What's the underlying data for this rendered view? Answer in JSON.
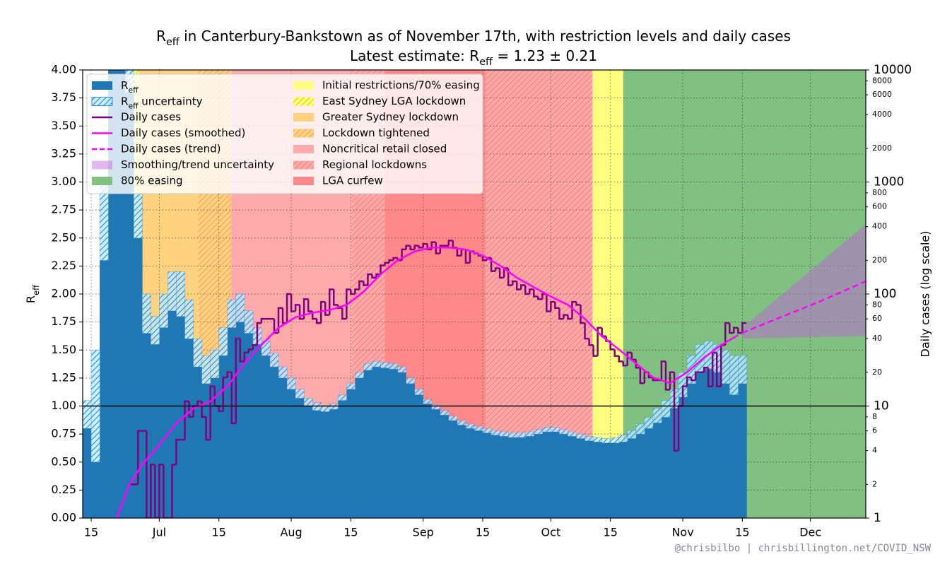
{
  "chart_data": {
    "type": "step",
    "title": [
      "R",
      {
        "sub": "eff"
      },
      " in Canterbury-Bankstown as of November 17th, with restriction levels and daily cases"
    ],
    "subtitle": [
      "Latest estimate: ",
      "R",
      {
        "sub": "eff"
      },
      " = 1.23 ± 0.21"
    ],
    "y_label": [
      "R",
      {
        "sub": "eff"
      }
    ],
    "y2_label": "Daily cases (log scale)",
    "footer": "@chrisbilbo | chrisbillington.net/COVID_NSW",
    "xlim": [
      12,
      196
    ],
    "xticks": [
      {
        "value": 14,
        "label": "15"
      },
      {
        "value": 30,
        "label": "Jul"
      },
      {
        "value": 44,
        "label": "15"
      },
      {
        "value": 61,
        "label": "Aug"
      },
      {
        "value": 75,
        "label": "15"
      },
      {
        "value": 92,
        "label": "Sep"
      },
      {
        "value": 106,
        "label": "15"
      },
      {
        "value": 122,
        "label": "Oct"
      },
      {
        "value": 136,
        "label": "15"
      },
      {
        "value": 153,
        "label": "Nov"
      },
      {
        "value": 167,
        "label": "15"
      },
      {
        "value": 183,
        "label": "Dec"
      }
    ],
    "ylim": [
      0,
      4
    ],
    "yticks": [
      {
        "value": 0,
        "label": "0.00"
      },
      {
        "value": 0.25,
        "label": "0.25"
      },
      {
        "value": 0.5,
        "label": "0.50"
      },
      {
        "value": 0.75,
        "label": "0.75"
      },
      {
        "value": 1,
        "label": "1.00"
      },
      {
        "value": 1.25,
        "label": "1.25"
      },
      {
        "value": 1.5,
        "label": "1.50"
      },
      {
        "value": 1.75,
        "label": "1.75"
      },
      {
        "value": 2,
        "label": "2.00"
      },
      {
        "value": 2.25,
        "label": "2.25"
      },
      {
        "value": 2.5,
        "label": "2.50"
      },
      {
        "value": 2.75,
        "label": "2.75"
      },
      {
        "value": 3,
        "label": "3.00"
      },
      {
        "value": 3.25,
        "label": "3.25"
      },
      {
        "value": 3.5,
        "label": "3.50"
      },
      {
        "value": 3.75,
        "label": "3.75"
      },
      {
        "value": 4,
        "label": "4.00"
      }
    ],
    "y2lim": [
      1,
      10000
    ],
    "y2_scale": "log",
    "y2ticks": [
      1,
      2,
      4,
      6,
      8,
      10,
      20,
      40,
      60,
      80,
      100,
      200,
      400,
      600,
      800,
      1000,
      2000,
      4000,
      6000,
      8000,
      10000
    ],
    "grid": true,
    "reference_line": 1,
    "series": [
      {
        "name": [
          "R",
          {
            "sub": "eff"
          }
        ],
        "style": "bar",
        "color": "#1f77b4",
        "x": [
          12,
          14,
          16,
          18,
          20,
          22,
          24,
          26,
          28,
          30,
          32,
          34,
          36,
          38,
          40,
          42,
          44,
          46,
          48,
          50,
          52,
          54,
          56,
          58,
          60,
          62,
          64,
          66,
          68,
          70,
          72,
          74,
          76,
          78,
          80,
          82,
          84,
          86,
          88,
          90,
          92,
          94,
          96,
          98,
          100,
          102,
          104,
          106,
          108,
          110,
          112,
          114,
          116,
          118,
          120,
          122,
          124,
          126,
          128,
          130,
          132,
          134,
          136,
          138,
          140,
          142,
          144,
          146,
          148,
          150,
          152,
          154,
          156,
          158,
          160,
          162,
          164,
          166
        ],
        "values": [
          0.8,
          0.5,
          2.3,
          4.2,
          4.2,
          3.8,
          2.5,
          1.65,
          1.55,
          1.7,
          1.85,
          1.8,
          1.6,
          1.35,
          1.2,
          1.25,
          1.45,
          1.7,
          1.75,
          1.65,
          1.55,
          1.45,
          1.35,
          1.25,
          1.15,
          1.07,
          1.0,
          0.96,
          0.95,
          0.97,
          1.05,
          1.15,
          1.25,
          1.32,
          1.35,
          1.34,
          1.33,
          1.3,
          1.2,
          1.1,
          1.02,
          0.97,
          0.92,
          0.87,
          0.83,
          0.8,
          0.78,
          0.76,
          0.74,
          0.73,
          0.72,
          0.72,
          0.73,
          0.75,
          0.77,
          0.77,
          0.75,
          0.73,
          0.71,
          0.69,
          0.68,
          0.67,
          0.67,
          0.68,
          0.71,
          0.75,
          0.8,
          0.85,
          0.9,
          0.98,
          1.08,
          1.2,
          1.3,
          1.33,
          1.3,
          1.2,
          1.1,
          1.2
        ]
      },
      {
        "name": [
          "R",
          {
            "sub": "eff"
          },
          " uncertainty"
        ],
        "style": "upper-band",
        "color": "#b8ecff",
        "hatch": "#3c8ede",
        "x": [
          12,
          14,
          16,
          18,
          20,
          22,
          24,
          26,
          28,
          30,
          32,
          34,
          36,
          38,
          40,
          42,
          44,
          46,
          48,
          50,
          52,
          54,
          56,
          58,
          60,
          62,
          64,
          66,
          68,
          70,
          72,
          74,
          76,
          78,
          80,
          82,
          84,
          86,
          88,
          90,
          92,
          94,
          96,
          98,
          100,
          102,
          104,
          106,
          108,
          110,
          112,
          114,
          116,
          118,
          120,
          122,
          124,
          126,
          128,
          130,
          132,
          134,
          136,
          138,
          140,
          142,
          144,
          146,
          148,
          150,
          152,
          154,
          156,
          158,
          160,
          162,
          164,
          166
        ],
        "values": [
          1.05,
          1.5,
          3.0,
          4.5,
          4.5,
          4.2,
          2.9,
          2.0,
          1.8,
          2.0,
          2.2,
          2.2,
          1.95,
          1.6,
          1.45,
          1.5,
          1.7,
          1.95,
          2.0,
          1.85,
          1.7,
          1.58,
          1.47,
          1.35,
          1.25,
          1.15,
          1.07,
          1.03,
          1.0,
          1.02,
          1.1,
          1.2,
          1.3,
          1.38,
          1.4,
          1.39,
          1.38,
          1.35,
          1.25,
          1.15,
          1.06,
          1.01,
          0.96,
          0.91,
          0.87,
          0.84,
          0.82,
          0.8,
          0.78,
          0.77,
          0.76,
          0.76,
          0.77,
          0.79,
          0.81,
          0.81,
          0.79,
          0.77,
          0.75,
          0.73,
          0.72,
          0.71,
          0.72,
          0.74,
          0.78,
          0.84,
          0.9,
          0.98,
          1.05,
          1.15,
          1.3,
          1.45,
          1.55,
          1.58,
          1.55,
          1.5,
          1.45,
          1.45
        ]
      },
      {
        "name": "Daily cases",
        "style": "step",
        "axis": "y2",
        "color": "#800080",
        "x": [
          23,
          24,
          25,
          26,
          27,
          28,
          29,
          30,
          31,
          32,
          33,
          34,
          35,
          36,
          37,
          38,
          39,
          40,
          41,
          42,
          43,
          44,
          45,
          46,
          47,
          48,
          49,
          50,
          51,
          52,
          53,
          54,
          55,
          56,
          57,
          58,
          59,
          60,
          61,
          62,
          63,
          64,
          65,
          66,
          67,
          68,
          69,
          70,
          71,
          72,
          73,
          74,
          75,
          76,
          77,
          78,
          79,
          80,
          81,
          82,
          83,
          84,
          85,
          86,
          87,
          88,
          89,
          90,
          91,
          92,
          93,
          94,
          95,
          96,
          97,
          98,
          99,
          100,
          101,
          102,
          103,
          104,
          105,
          106,
          107,
          108,
          109,
          110,
          111,
          112,
          113,
          114,
          115,
          116,
          117,
          118,
          119,
          120,
          121,
          122,
          123,
          124,
          125,
          126,
          127,
          128,
          129,
          130,
          131,
          132,
          133,
          134,
          135,
          136,
          137,
          138,
          139,
          140,
          141,
          142,
          143,
          144,
          145,
          146,
          147,
          148,
          149,
          150,
          151,
          152,
          153,
          154,
          155,
          156,
          157,
          158,
          159,
          160,
          161,
          162,
          163,
          164,
          165,
          166,
          167
        ],
        "values": [
          2,
          2,
          6,
          6,
          1,
          3,
          1,
          3,
          1,
          1,
          3,
          5,
          5,
          11,
          8,
          10,
          11,
          8,
          5,
          15,
          10,
          9,
          18,
          20,
          7,
          40,
          25,
          30,
          32,
          35,
          55,
          60,
          60,
          60,
          45,
          75,
          55,
          100,
          70,
          80,
          60,
          90,
          70,
          60,
          55,
          85,
          65,
          110,
          80,
          75,
          60,
          110,
          100,
          110,
          130,
          120,
          150,
          140,
          150,
          180,
          190,
          200,
          210,
          200,
          250,
          270,
          250,
          270,
          260,
          280,
          250,
          290,
          230,
          270,
          270,
          300,
          260,
          220,
          250,
          190,
          240,
          230,
          220,
          200,
          210,
          160,
          170,
          140,
          170,
          120,
          130,
          110,
          120,
          100,
          110,
          95,
          90,
          100,
          70,
          85,
          75,
          60,
          65,
          60,
          85,
          80,
          55,
          40,
          35,
          28,
          50,
          42,
          38,
          32,
          28,
          25,
          23,
          30,
          26,
          22,
          16,
          20,
          18,
          17,
          17,
          25,
          14,
          20,
          4,
          10,
          15,
          18,
          17,
          20,
          20,
          22,
          15,
          30,
          15,
          35,
          55,
          45,
          50,
          45,
          55
        ]
      },
      {
        "name": "Daily cases (smoothed)",
        "style": "line",
        "axis": "y2",
        "color": "#ff00ff",
        "x": [
          20,
          23,
          26,
          30,
          34,
          38,
          42,
          46,
          50,
          54,
          58,
          62,
          66,
          70,
          74,
          78,
          82,
          86,
          90,
          94,
          98,
          102,
          106,
          110,
          114,
          118,
          122,
          126,
          130,
          134,
          138,
          142,
          146,
          150,
          154,
          158,
          162,
          166
        ],
        "values": [
          1,
          2,
          3,
          4.5,
          7,
          9.5,
          11,
          15,
          24,
          35,
          50,
          62,
          68,
          72,
          80,
          105,
          150,
          200,
          240,
          260,
          260,
          250,
          220,
          180,
          140,
          115,
          95,
          80,
          60,
          42,
          32,
          24,
          18,
          16,
          20,
          27,
          35,
          43
        ]
      },
      {
        "name": "Daily cases (trend)",
        "style": "dashed",
        "axis": "y2",
        "color": "#ff00ff",
        "x": [
          167,
          175,
          185,
          196
        ],
        "values": [
          45,
          60,
          85,
          130
        ]
      },
      {
        "name": "Smoothing/trend uncertainty",
        "style": "area",
        "axis": "y2",
        "color": "#c060e0",
        "x": [
          167,
          196
        ],
        "lower": [
          40,
          42
        ],
        "upper": [
          50,
          420
        ]
      }
    ],
    "levels": [
      {
        "name": "80% easing",
        "color": "#80c080"
      },
      {
        "name": "Initial restrictions/70% easing",
        "color": "#ffff80"
      },
      {
        "name": "East Sydney LGA lockdown",
        "color": "#ffff80",
        "hatch": "#e6cf00"
      },
      {
        "name": "Greater Sydney lockdown",
        "color": "#ffd280"
      },
      {
        "name": "Lockdown tightened",
        "color": "#ffd280",
        "hatch": "#ffa060"
      },
      {
        "name": "Noncritical retail closed",
        "color": "#ffaaaa"
      },
      {
        "name": "Regional lockdowns",
        "color": "#ffaaaa",
        "hatch": "#ff7f7f"
      },
      {
        "name": "LGA curfew",
        "color": "#ff8888"
      }
    ],
    "spans": [
      {
        "level": 1,
        "start": 23.4,
        "end": 24.5
      },
      {
        "level": 2,
        "start": 24.5,
        "end": 25.3
      },
      {
        "level": 3,
        "start": 25.3,
        "end": 39.1
      },
      {
        "level": 4,
        "start": 39.1,
        "end": 46.9
      },
      {
        "level": 5,
        "start": 46.9,
        "end": 75.2
      },
      {
        "level": 6,
        "start": 75.2,
        "end": 83.0
      },
      {
        "level": 7,
        "start": 83.0,
        "end": 106.7
      },
      {
        "level": 6,
        "start": 106.7,
        "end": 131.8
      },
      {
        "level": 1,
        "start": 131.8,
        "end": 139.0
      },
      {
        "level": 0,
        "start": 139.0,
        "end": 196
      }
    ]
  }
}
